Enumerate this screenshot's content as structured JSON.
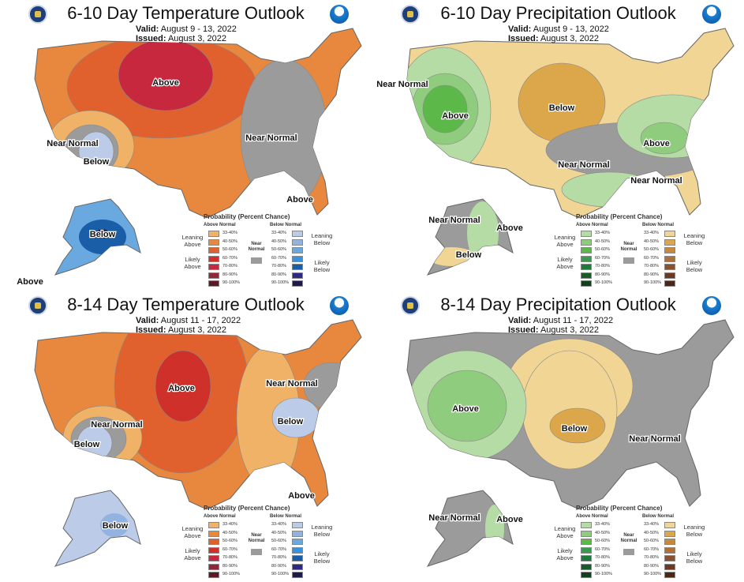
{
  "panels": [
    {
      "title": "6-10 Day Temperature Outlook",
      "valid_label": "Valid:",
      "valid": "August 9 - 13, 2022",
      "issued_label": "Issued:",
      "issued": "August 3, 2022",
      "kind": "temperature",
      "labels": [
        "Above",
        "Near Normal",
        "Below",
        "Near Normal",
        "Above",
        "Below",
        "Above"
      ]
    },
    {
      "title": "6-10 Day Precipitation Outlook",
      "valid_label": "Valid:",
      "valid": "August 9 - 13, 2022",
      "issued_label": "Issued:",
      "issued": "August 3, 2022",
      "kind": "precipitation",
      "labels": [
        "Near Normal",
        "Above",
        "Below",
        "Near Normal",
        "Above",
        "Near Normal",
        "Near Normal",
        "Above",
        "Below"
      ]
    },
    {
      "title": "8-14 Day Temperature Outlook",
      "valid_label": "Valid:",
      "valid": "August 11 - 17, 2022",
      "issued_label": "Issued:",
      "issued": "August 3, 2022",
      "kind": "temperature",
      "labels": [
        "Above",
        "Near Normal",
        "Below",
        "Near Normal",
        "Below",
        "Above",
        "Below"
      ]
    },
    {
      "title": "8-14 Day Precipitation Outlook",
      "valid_label": "Valid:",
      "valid": "August 11 - 17, 2022",
      "issued_label": "Issued:",
      "issued": "August 3, 2022",
      "kind": "precipitation",
      "labels": [
        "Above",
        "Below",
        "Near Normal",
        "Near Normal",
        "Above"
      ]
    }
  ],
  "legend": {
    "title": "Probability (Percent Chance)",
    "near_normal": "Near Normal",
    "categories": [
      "33-40%",
      "40-50%",
      "50-60%",
      "60-70%",
      "70-80%",
      "80-90%",
      "90-100%"
    ],
    "temperature": {
      "above_header": "Above Normal",
      "below_header": "Below Normal",
      "leaning_above": "Leaning Above",
      "likely_above": "Likely Above",
      "leaning_below": "Leaning Below",
      "likely_below": "Likely Below",
      "above_colors": [
        "#f0b266",
        "#e8883e",
        "#e0602e",
        "#d0302a",
        "#c8283e",
        "#902838",
        "#5a1a22"
      ],
      "below_colors": [
        "#bccbe8",
        "#92b2e0",
        "#6aa8e0",
        "#3a92dc",
        "#1a5ea8",
        "#2e2a80",
        "#1c1a48"
      ]
    },
    "precipitation": {
      "above_header": "Above Normal",
      "below_header": "Below Normal",
      "leaning_above": "Leaning Above",
      "likely_above": "Likely Above",
      "leaning_below": "Leaning Below",
      "likely_below": "Likely Below",
      "above_colors": [
        "#b6dca6",
        "#90cc7e",
        "#5cb848",
        "#3c9a4e",
        "#1e7a3a",
        "#1a5a2a",
        "#10401c"
      ],
      "below_colors": [
        "#f0d594",
        "#dca64a",
        "#c88a3a",
        "#b0703a",
        "#8a5030",
        "#6a3a24",
        "#4a2818"
      ]
    },
    "near_normal_color": "#9b9b9b"
  }
}
